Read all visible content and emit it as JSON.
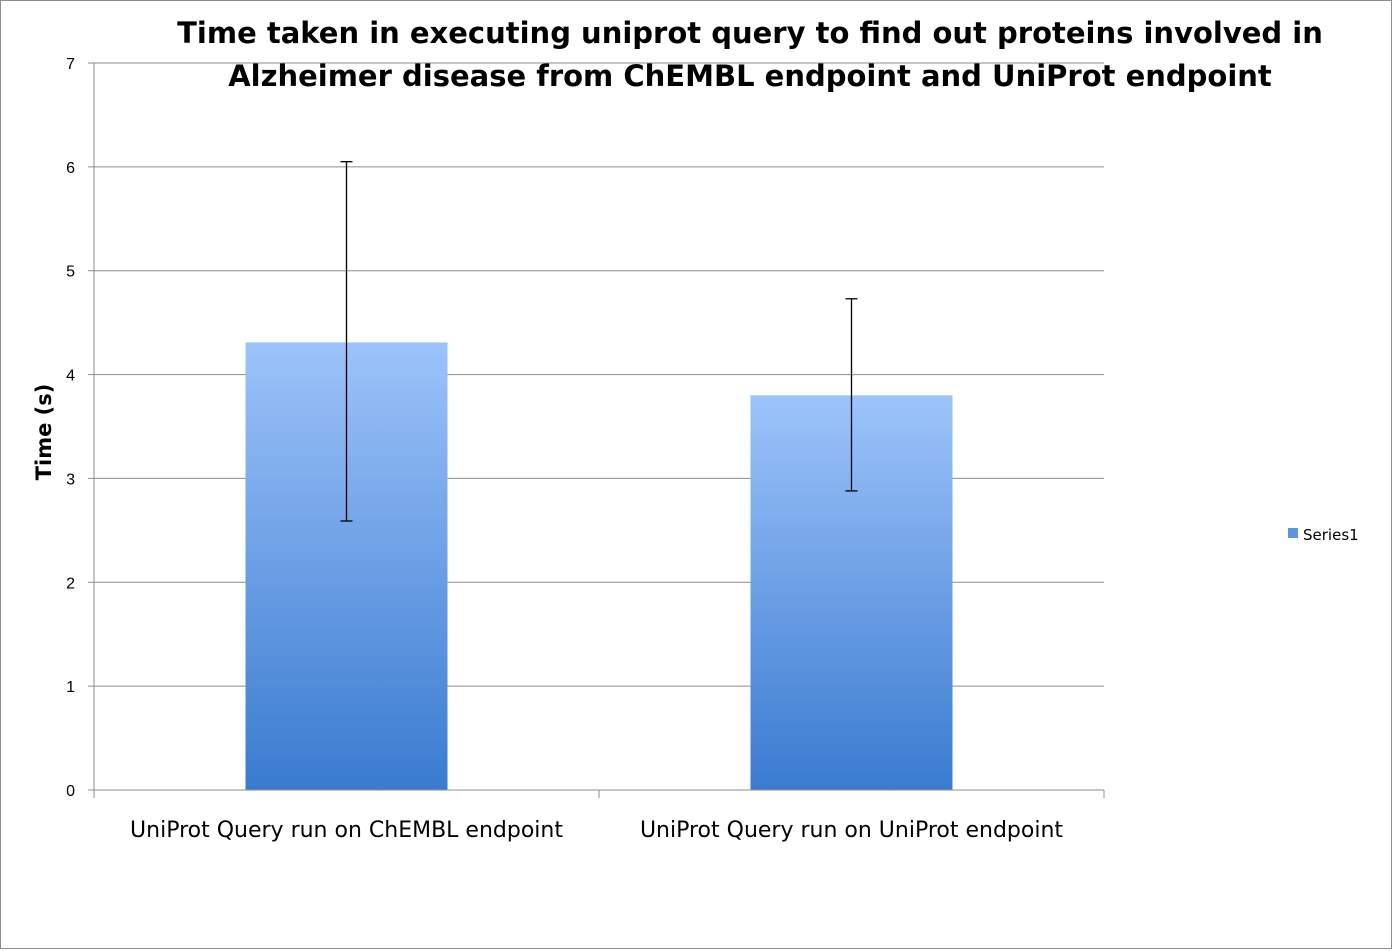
{
  "chart_data": {
    "type": "bar",
    "title_lines": [
      "Time taken in executing uniprot query to find out proteins involved in",
      "Alzheimer disease from ChEMBL endpoint and UniProt endpoint"
    ],
    "xlabel": "",
    "ylabel": "Time (s)",
    "categories": [
      "UniProt Query run on ChEMBL endpoint",
      "UniProt Query run on UniProt endpoint"
    ],
    "series": [
      {
        "name": "Series1",
        "values": [
          4.31,
          3.8
        ],
        "error_low": [
          2.59,
          2.88
        ],
        "error_high": [
          6.05,
          4.73
        ]
      }
    ],
    "ylim": [
      0,
      7
    ],
    "yticks": [
      "0",
      "1",
      "2",
      "3",
      "4",
      "5",
      "6",
      "7"
    ],
    "grid": true,
    "legend_position": "right",
    "colors": {
      "bar_top": "#9dc3fa",
      "bar_bottom": "#3a7bd0",
      "grid": "#8c8c8c",
      "legend_swatch": "#5b95e3"
    }
  }
}
